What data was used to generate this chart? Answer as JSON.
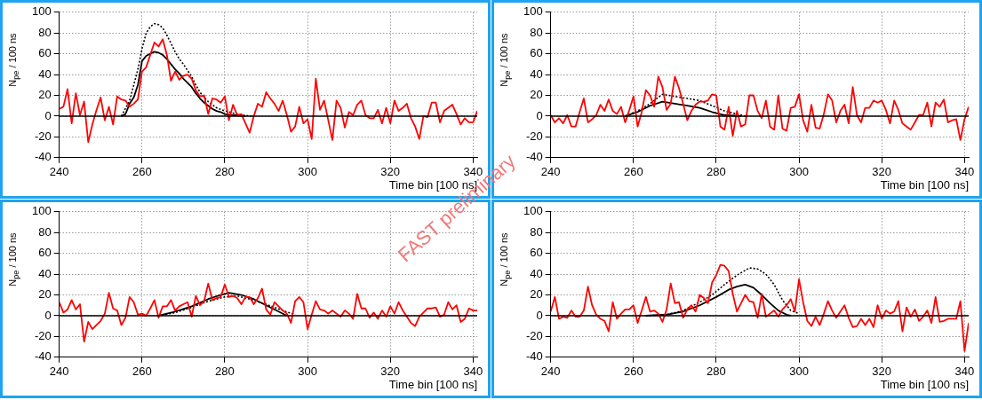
{
  "chart_data": [
    {
      "type": "line",
      "xlabel": "Time bin [100 ns]",
      "ylabel": "N$_{pe}$ / 100 ns",
      "xlim": [
        240,
        341
      ],
      "ylim": [
        -40,
        100
      ],
      "xticks": [
        240,
        260,
        280,
        300,
        320,
        340
      ],
      "yticks": [
        -40,
        -20,
        0,
        20,
        40,
        60,
        80,
        100
      ],
      "grid": true,
      "x": [
        240,
        241,
        242,
        243,
        244,
        245,
        246,
        247,
        248,
        249,
        250,
        251,
        252,
        253,
        254,
        255,
        256,
        257,
        258,
        259,
        260,
        261,
        262,
        263,
        264,
        265,
        266,
        267,
        268,
        269,
        270,
        271,
        272,
        273,
        274,
        275,
        276,
        277,
        278,
        279,
        280,
        281,
        282,
        283,
        284,
        285,
        286,
        287,
        288,
        289,
        290,
        291,
        292,
        293,
        294,
        295,
        296,
        297,
        298,
        299,
        300,
        301,
        302,
        303,
        304,
        305,
        306,
        307,
        308,
        309,
        310,
        311,
        312,
        313,
        314,
        315,
        316,
        317,
        318,
        319,
        320,
        321,
        322,
        323,
        324,
        325,
        326,
        327,
        328,
        329,
        330,
        331,
        332,
        333,
        334,
        335,
        336,
        337,
        338,
        339,
        340,
        341
      ],
      "ref_lines": [
        {
          "axis": "y",
          "value": 0,
          "color": "#000000"
        }
      ],
      "series": [
        {
          "color": "#ff0000",
          "values": [
            7,
            9,
            26,
            -7,
            22,
            1,
            14,
            -25,
            -8,
            6,
            18,
            -4,
            9,
            -8,
            19,
            16,
            15,
            9,
            12,
            16,
            43,
            47,
            59,
            71,
            67,
            74,
            59,
            34,
            43,
            35,
            39,
            40,
            36,
            25,
            19,
            20,
            2,
            17,
            16,
            13,
            19,
            -4,
            11,
            1,
            2,
            -7,
            -16,
            0,
            12,
            9,
            23,
            17,
            12,
            5,
            15,
            1,
            -15,
            -10,
            9,
            -7,
            -3,
            -22,
            36,
            6,
            15,
            -4,
            -23,
            15,
            8,
            -11,
            4,
            1,
            11,
            15,
            1,
            -2,
            -2,
            6,
            -7,
            8,
            -7,
            15,
            5,
            8,
            12,
            -2,
            -10,
            -22,
            0,
            -1,
            13,
            13,
            -6,
            5,
            8,
            11,
            2,
            -8,
            -2,
            -6,
            -6,
            5
          ]
        },
        {
          "color": "#000000",
          "x": [
            255,
            256,
            257,
            258,
            259,
            260,
            261,
            262,
            263,
            264,
            265,
            266,
            267,
            268,
            269,
            270,
            271,
            272,
            273,
            274,
            275,
            276,
            277,
            278,
            279,
            280,
            282,
            285
          ],
          "values": [
            0,
            2,
            12,
            18,
            30,
            53,
            58,
            60,
            62,
            61,
            59,
            55,
            50,
            45,
            41,
            36,
            32,
            28,
            22,
            17,
            13,
            10,
            7,
            5,
            4,
            2,
            1,
            0
          ]
        },
        {
          "color": "#000000",
          "line_style": "dotted",
          "x": [
            255,
            257,
            259,
            260,
            261,
            262,
            263,
            264,
            265,
            266,
            267,
            268,
            269,
            270,
            271,
            272,
            273,
            274,
            275,
            276,
            277,
            278,
            280,
            282,
            284,
            287
          ],
          "values": [
            0,
            15,
            45,
            65,
            80,
            86,
            89,
            88,
            85,
            78,
            70,
            62,
            55,
            50,
            44,
            38,
            30,
            23,
            18,
            14,
            11,
            8,
            5,
            3,
            1,
            0
          ]
        }
      ]
    },
    {
      "type": "line",
      "xlabel": "Time bin [100 ns]",
      "ylabel": "N$_{pe}$ / 100 ns",
      "xlim": [
        240,
        341
      ],
      "ylim": [
        -40,
        100
      ],
      "xticks": [
        240,
        260,
        280,
        300,
        320,
        340
      ],
      "yticks": [
        -40,
        -20,
        0,
        20,
        40,
        60,
        80,
        100
      ],
      "grid": true,
      "annotations": [
        "FAST preliminary"
      ],
      "x": [
        240,
        241,
        242,
        243,
        244,
        245,
        246,
        247,
        248,
        249,
        250,
        251,
        252,
        253,
        254,
        255,
        256,
        257,
        258,
        259,
        260,
        261,
        262,
        263,
        264,
        265,
        266,
        267,
        268,
        269,
        270,
        271,
        272,
        273,
        274,
        275,
        276,
        277,
        278,
        279,
        280,
        281,
        282,
        283,
        284,
        285,
        286,
        287,
        288,
        289,
        290,
        291,
        292,
        293,
        294,
        295,
        296,
        297,
        298,
        299,
        300,
        301,
        302,
        303,
        304,
        305,
        306,
        307,
        308,
        309,
        310,
        311,
        312,
        313,
        314,
        315,
        316,
        317,
        318,
        319,
        320,
        321,
        322,
        323,
        324,
        325,
        326,
        327,
        328,
        329,
        330,
        331,
        332,
        333,
        334,
        335,
        336,
        337,
        338,
        339,
        340,
        341
      ],
      "ref_lines": [
        {
          "axis": "y",
          "value": 0,
          "color": "#000000"
        }
      ],
      "series": [
        {
          "color": "#ff0000",
          "values": [
            1,
            -6,
            -2,
            -7,
            1,
            -10,
            -10,
            4,
            17,
            -6,
            -3,
            1,
            11,
            5,
            16,
            5,
            2,
            9,
            -6,
            6,
            19,
            -10,
            4,
            25,
            20,
            9,
            38,
            28,
            6,
            12,
            38,
            27,
            12,
            -4,
            5,
            11,
            14,
            14,
            15,
            21,
            20,
            -10,
            -13,
            9,
            -19,
            5,
            -10,
            -8,
            20,
            20,
            5,
            -2,
            15,
            -10,
            -13,
            20,
            -12,
            -14,
            8,
            9,
            21,
            -4,
            -15,
            11,
            -11,
            -12,
            2,
            21,
            15,
            -6,
            5,
            11,
            -7,
            28,
            1,
            -6,
            8,
            8,
            15,
            13,
            15,
            6,
            -7,
            15,
            6,
            -7,
            -10,
            -13,
            -6,
            1,
            1,
            13,
            -10,
            13,
            9,
            16,
            -6,
            -4,
            -3,
            -23,
            -3,
            9
          ]
        },
        {
          "color": "#000000",
          "x": [
            258,
            261,
            264,
            267,
            270,
            273,
            276,
            279,
            282,
            286
          ],
          "values": [
            0,
            4,
            10,
            14,
            12,
            10,
            8,
            4,
            1,
            0
          ]
        },
        {
          "color": "#000000",
          "line_style": "dotted",
          "x": [
            258,
            261,
            264,
            266,
            267,
            270,
            273,
            276,
            279,
            282,
            285,
            287
          ],
          "values": [
            0,
            5,
            12,
            18,
            21,
            19,
            17,
            15,
            10,
            5,
            2,
            0
          ]
        }
      ]
    },
    {
      "type": "line",
      "xlabel": "Time bin [100 ns]",
      "ylabel": "N$_{pe}$ / 100 ns",
      "xlim": [
        240,
        341
      ],
      "ylim": [
        -40,
        100
      ],
      "xticks": [
        240,
        260,
        280,
        300,
        320,
        340
      ],
      "yticks": [
        -40,
        -20,
        0,
        20,
        40,
        60,
        80,
        100
      ],
      "grid": true,
      "x": [
        240,
        241,
        242,
        243,
        244,
        245,
        246,
        247,
        248,
        249,
        250,
        251,
        252,
        253,
        254,
        255,
        256,
        257,
        258,
        259,
        260,
        261,
        262,
        263,
        264,
        265,
        266,
        267,
        268,
        269,
        270,
        271,
        272,
        273,
        274,
        275,
        276,
        277,
        278,
        279,
        280,
        281,
        282,
        283,
        284,
        285,
        286,
        287,
        288,
        289,
        290,
        291,
        292,
        293,
        294,
        295,
        296,
        297,
        298,
        299,
        300,
        301,
        302,
        303,
        304,
        305,
        306,
        307,
        308,
        309,
        310,
        311,
        312,
        313,
        314,
        315,
        316,
        317,
        318,
        319,
        320,
        321,
        322,
        323,
        324,
        325,
        326,
        327,
        328,
        329,
        330,
        331,
        332,
        333,
        334,
        335,
        336,
        337,
        338,
        339,
        340,
        341
      ],
      "ref_lines": [
        {
          "axis": "y",
          "value": 0,
          "color": "#000000"
        }
      ],
      "series": [
        {
          "color": "#ff0000",
          "values": [
            13,
            3,
            6,
            15,
            6,
            11,
            -25,
            -6,
            -13,
            -9,
            -5,
            2,
            22,
            7,
            5,
            -9,
            -2,
            18,
            13,
            1,
            2,
            0,
            7,
            15,
            -2,
            9,
            9,
            15,
            5,
            9,
            11,
            13,
            -1,
            19,
            10,
            14,
            31,
            15,
            17,
            18,
            30,
            18,
            19,
            17,
            11,
            18,
            18,
            11,
            17,
            26,
            6,
            1,
            13,
            9,
            5,
            2,
            -7,
            14,
            18,
            13,
            -13,
            1,
            14,
            6,
            5,
            2,
            5,
            2,
            -1,
            5,
            2,
            -3,
            21,
            7,
            7,
            -2,
            3,
            -3,
            5,
            -1,
            9,
            2,
            13,
            5,
            -1,
            -7,
            -10,
            -1,
            3,
            7,
            7,
            8,
            -1,
            1,
            13,
            6,
            10,
            -6,
            -3,
            7,
            5,
            5
          ]
        },
        {
          "color": "#000000",
          "x": [
            264,
            268,
            272,
            276,
            279,
            281,
            284,
            287,
            290,
            293,
            295
          ],
          "values": [
            0,
            4,
            9,
            16,
            20,
            22,
            20,
            16,
            10,
            4,
            0
          ]
        },
        {
          "color": "#000000",
          "line_style": "dotted",
          "x": [
            264,
            268,
            272,
            276,
            280,
            283,
            286,
            290,
            294,
            297
          ],
          "values": [
            0,
            3,
            8,
            14,
            18,
            19,
            16,
            11,
            5,
            1
          ]
        }
      ]
    },
    {
      "type": "line",
      "xlabel": "Time bin [100 ns]",
      "ylabel": "N$_{pe}$ / 100 ns",
      "xlim": [
        240,
        341
      ],
      "ylim": [
        -40,
        100
      ],
      "xticks": [
        240,
        260,
        280,
        300,
        320,
        340
      ],
      "yticks": [
        -40,
        -20,
        0,
        20,
        40,
        60,
        80,
        100
      ],
      "grid": true,
      "x": [
        240,
        241,
        242,
        243,
        244,
        245,
        246,
        247,
        248,
        249,
        250,
        251,
        252,
        253,
        254,
        255,
        256,
        257,
        258,
        259,
        260,
        261,
        262,
        263,
        264,
        265,
        266,
        267,
        268,
        269,
        270,
        271,
        272,
        273,
        274,
        275,
        276,
        277,
        278,
        279,
        280,
        281,
        282,
        283,
        284,
        285,
        286,
        287,
        288,
        289,
        290,
        291,
        292,
        293,
        294,
        295,
        296,
        297,
        298,
        299,
        300,
        301,
        302,
        303,
        304,
        305,
        306,
        307,
        308,
        309,
        310,
        311,
        312,
        313,
        314,
        315,
        316,
        317,
        318,
        319,
        320,
        321,
        322,
        323,
        324,
        325,
        326,
        327,
        328,
        329,
        330,
        331,
        332,
        333,
        334,
        335,
        336,
        337,
        338,
        339,
        340,
        341
      ],
      "ref_lines": [
        {
          "axis": "y",
          "value": 0,
          "color": "#000000"
        }
      ],
      "series": [
        {
          "color": "#ff0000",
          "values": [
            4,
            18,
            -3,
            -1,
            -2,
            5,
            -1,
            -1,
            5,
            28,
            10,
            1,
            -3,
            -5,
            -15,
            13,
            -3,
            2,
            6,
            6,
            10,
            -7,
            5,
            18,
            4,
            5,
            2,
            -6,
            6,
            31,
            12,
            13,
            -2,
            6,
            10,
            4,
            20,
            17,
            12,
            32,
            39,
            49,
            48,
            43,
            21,
            4,
            12,
            20,
            14,
            13,
            -2,
            21,
            -1,
            2,
            5,
            -1,
            6,
            10,
            16,
            4,
            35,
            13,
            -5,
            -10,
            -1,
            -9,
            2,
            14,
            5,
            -2,
            4,
            10,
            -2,
            -11,
            -10,
            -3,
            -9,
            -3,
            -11,
            10,
            -3,
            5,
            2,
            4,
            14,
            -15,
            8,
            -1,
            6,
            -5,
            -1,
            5,
            -7,
            18,
            -6,
            -5,
            -3,
            -3,
            -3,
            14,
            -34,
            -7
          ]
        },
        {
          "color": "#000000",
          "x": [
            263,
            268,
            272,
            276,
            280,
            283,
            285,
            287,
            289,
            291,
            293,
            295,
            297,
            298
          ],
          "values": [
            0,
            1,
            4,
            10,
            18,
            25,
            28,
            30,
            27,
            20,
            12,
            5,
            1,
            0
          ]
        },
        {
          "color": "#000000",
          "line_style": "dotted",
          "x": [
            263,
            268,
            272,
            276,
            279,
            282,
            285,
            288,
            290,
            292,
            294,
            296,
            298,
            300
          ],
          "values": [
            0,
            1,
            5,
            13,
            20,
            30,
            39,
            46,
            45,
            40,
            30,
            15,
            5,
            2
          ]
        }
      ]
    }
  ]
}
